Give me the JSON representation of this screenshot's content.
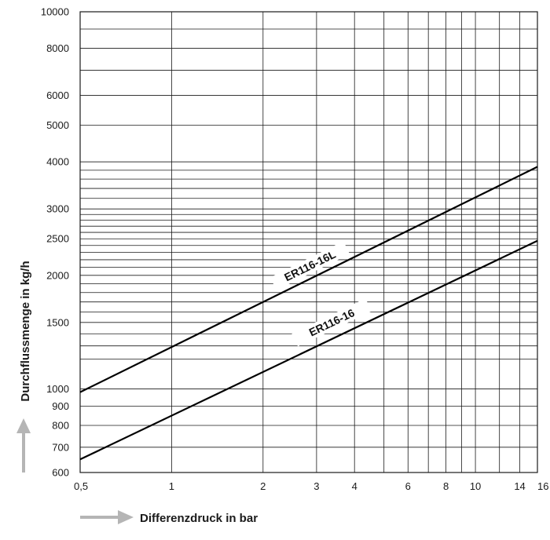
{
  "chart_data": {
    "type": "line",
    "x_scale": "log",
    "y_scale": "log",
    "xlabel": "Differenzdruck in bar",
    "ylabel": "Durchflussmenge in kg/h",
    "xlim": [
      0.5,
      16
    ],
    "ylim": [
      600,
      10000
    ],
    "grid": true,
    "x_ticks": [
      {
        "value": 0.5,
        "label": "0,5"
      },
      {
        "value": 1,
        "label": "1"
      },
      {
        "value": 2,
        "label": "2"
      },
      {
        "value": 3,
        "label": "3"
      },
      {
        "value": 4,
        "label": "4"
      },
      {
        "value": 6,
        "label": "6"
      },
      {
        "value": 8,
        "label": "8"
      },
      {
        "value": 10,
        "label": "10"
      },
      {
        "value": 14,
        "label": "14"
      },
      {
        "value": 16,
        "label": "16"
      }
    ],
    "y_ticks": [
      {
        "value": 600,
        "label": "600"
      },
      {
        "value": 700,
        "label": "700"
      },
      {
        "value": 800,
        "label": "800"
      },
      {
        "value": 900,
        "label": "900"
      },
      {
        "value": 1000,
        "label": "1000"
      },
      {
        "value": 1500,
        "label": "1500"
      },
      {
        "value": 2000,
        "label": "2000"
      },
      {
        "value": 2500,
        "label": "2500"
      },
      {
        "value": 3000,
        "label": "3000"
      },
      {
        "value": 4000,
        "label": "4000"
      },
      {
        "value": 5000,
        "label": "5000"
      },
      {
        "value": 6000,
        "label": "6000"
      },
      {
        "value": 8000,
        "label": "8000"
      },
      {
        "value": 10000,
        "label": "10000"
      }
    ],
    "x_grid": [
      0.5,
      1,
      2,
      3,
      4,
      5,
      6,
      7,
      8,
      9,
      10,
      12,
      14,
      16
    ],
    "y_grid": [
      600,
      700,
      800,
      900,
      1000,
      1200,
      1300,
      1400,
      1500,
      1600,
      1700,
      1800,
      1900,
      2000,
      2100,
      2200,
      2300,
      2400,
      2500,
      2600,
      2700,
      2800,
      2900,
      3000,
      3200,
      3400,
      3600,
      3800,
      4000,
      5000,
      6000,
      7000,
      8000,
      9000,
      10000
    ],
    "series": [
      {
        "name": "ER116-16L",
        "x": [
          0.5,
          16
        ],
        "y": [
          980,
          3880
        ],
        "color": "#000000",
        "label_at": {
          "x": 2.8,
          "y": 2050
        }
      },
      {
        "name": "ER116-16",
        "x": [
          0.5,
          16
        ],
        "y": [
          650,
          2470
        ],
        "color": "#000000",
        "label_at": {
          "x": 3.3,
          "y": 1450
        }
      }
    ]
  },
  "colors": {
    "grid": "#1a1a1a",
    "line": "#000000",
    "arrow": "#b5b5b5"
  }
}
